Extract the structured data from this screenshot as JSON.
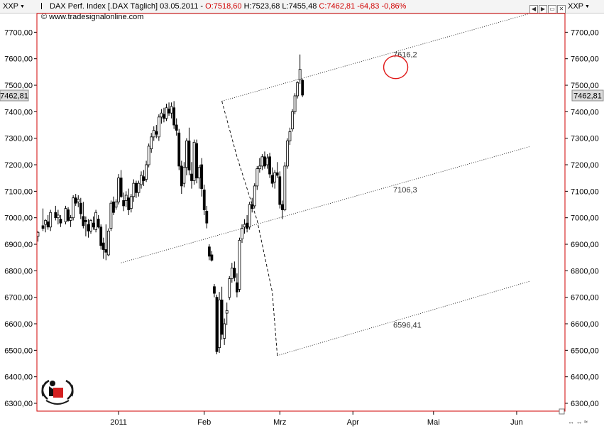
{
  "header": {
    "left_symbol": "XXP",
    "right_symbol": "XXP",
    "instrument": "DAX Perf. Index [.DAX  Täglich]",
    "date": "03.05.2011",
    "open": "O:7518,60",
    "high": "H:7523,68",
    "low": "L:7455,48",
    "close": "C:7462,81",
    "change": "-64,83",
    "change_pct": "-0,86%",
    "website": "© www.tradesignalonline.com",
    "window_buttons": [
      "◀",
      "▶",
      "▭",
      "✕"
    ]
  },
  "colors": {
    "change_red": "#d00000",
    "price_tag_bg": "#dcdcdc",
    "frame": "#d00000",
    "highlight_circle": "#e01818"
  },
  "chart_data": {
    "type": "candlestick",
    "title": "DAX Perf. Index [.DAX  Täglich]",
    "xlabel": "",
    "ylabel": "",
    "ylim": [
      6270,
      7790
    ],
    "yticks": [
      6300,
      6400,
      6500,
      6600,
      6700,
      6800,
      6900,
      7000,
      7100,
      7200,
      7300,
      7400,
      7500,
      7600,
      7700
    ],
    "ytick_labels": [
      "6300,00",
      "6400,00",
      "6500,00",
      "6600,00",
      "6700,00",
      "6800,00",
      "6900,00",
      "7000,00",
      "7100,00",
      "7200,00",
      "7300,00",
      "7400,00",
      "7500,00",
      "7600,00",
      "7700,00"
    ],
    "xlim": [
      0,
      194
    ],
    "xticks": [
      {
        "label": "2011",
        "x": 31
      },
      {
        "label": "Feb",
        "x": 65
      },
      {
        "label": "Mrz",
        "x": 95
      },
      {
        "label": "Apr",
        "x": 124
      },
      {
        "label": "Mai",
        "x": 156
      },
      {
        "label": "Jun",
        "x": 189
      }
    ],
    "last_price": "7462,81",
    "annotations": [
      {
        "text": "7616,2",
        "x": 140,
        "y": 7616.2
      },
      {
        "text": "7106,3",
        "x": 140,
        "y": 7106.3
      },
      {
        "text": "6596,41",
        "x": 140,
        "y": 6596.41
      }
    ],
    "channel_lines": [
      {
        "name": "upper",
        "from": [
          72,
          7440
        ],
        "to": [
          194,
          7770
        ]
      },
      {
        "name": "middle",
        "from": [
          32,
          6830
        ],
        "to": [
          194,
          7268
        ]
      },
      {
        "name": "lower",
        "from": [
          94,
          6480
        ],
        "to": [
          194,
          6760
        ]
      }
    ],
    "dashed_line": [
      [
        72,
        7440
      ],
      [
        78,
        7230
      ],
      [
        86,
        6990
      ],
      [
        92,
        6720
      ],
      [
        94,
        6480
      ]
    ],
    "highlight_circle": {
      "x": 141,
      "y": 7568
    },
    "candles": [
      {
        "x": -1,
        "o": 6930,
        "h": 6950,
        "l": 6910,
        "c": 6945
      },
      {
        "x": 1,
        "o": 6970,
        "h": 7035,
        "l": 6950,
        "c": 6960
      },
      {
        "x": 2,
        "o": 6975,
        "h": 6995,
        "l": 6945,
        "c": 6990
      },
      {
        "x": 3,
        "o": 6985,
        "h": 7010,
        "l": 6955,
        "c": 6965
      },
      {
        "x": 4,
        "o": 6965,
        "h": 7030,
        "l": 6950,
        "c": 7020
      },
      {
        "x": 6,
        "o": 7020,
        "h": 7045,
        "l": 6990,
        "c": 7000
      },
      {
        "x": 7,
        "o": 7000,
        "h": 7030,
        "l": 6975,
        "c": 7010
      },
      {
        "x": 8,
        "o": 6995,
        "h": 7010,
        "l": 6965,
        "c": 6980
      },
      {
        "x": 10,
        "o": 6985,
        "h": 7045,
        "l": 6975,
        "c": 7035
      },
      {
        "x": 11,
        "o": 7030,
        "h": 7040,
        "l": 6985,
        "c": 6990
      },
      {
        "x": 12,
        "o": 6990,
        "h": 7010,
        "l": 6965,
        "c": 7000
      },
      {
        "x": 13,
        "o": 7000,
        "h": 7085,
        "l": 6990,
        "c": 7075
      },
      {
        "x": 14,
        "o": 7075,
        "h": 7090,
        "l": 7045,
        "c": 7055
      },
      {
        "x": 15,
        "o": 7060,
        "h": 7085,
        "l": 7040,
        "c": 7070
      },
      {
        "x": 16,
        "o": 7055,
        "h": 7075,
        "l": 6995,
        "c": 7015
      },
      {
        "x": 17,
        "o": 7005,
        "h": 7060,
        "l": 6960,
        "c": 6970
      },
      {
        "x": 18,
        "o": 6990,
        "h": 7005,
        "l": 6930,
        "c": 6985
      },
      {
        "x": 19,
        "o": 6975,
        "h": 6995,
        "l": 6925,
        "c": 6950
      },
      {
        "x": 20,
        "o": 6950,
        "h": 6995,
        "l": 6940,
        "c": 6990
      },
      {
        "x": 21,
        "o": 6980,
        "h": 7005,
        "l": 6955,
        "c": 6965
      },
      {
        "x": 22,
        "o": 6955,
        "h": 7030,
        "l": 6945,
        "c": 7020
      },
      {
        "x": 23,
        "o": 6995,
        "h": 7010,
        "l": 6960,
        "c": 6965
      },
      {
        "x": 24,
        "o": 6965,
        "h": 6975,
        "l": 6880,
        "c": 6895
      },
      {
        "x": 25,
        "o": 6905,
        "h": 6925,
        "l": 6845,
        "c": 6880
      },
      {
        "x": 26,
        "o": 6880,
        "h": 6975,
        "l": 6840,
        "c": 6870
      },
      {
        "x": 27,
        "o": 6860,
        "h": 6960,
        "l": 6855,
        "c": 6950
      },
      {
        "x": 28,
        "o": 6960,
        "h": 7065,
        "l": 6950,
        "c": 7055
      },
      {
        "x": 29,
        "o": 7060,
        "h": 7080,
        "l": 7010,
        "c": 7020
      },
      {
        "x": 30,
        "o": 7040,
        "h": 7070,
        "l": 7030,
        "c": 7060
      },
      {
        "x": 31,
        "o": 7060,
        "h": 7165,
        "l": 7050,
        "c": 7150
      },
      {
        "x": 32,
        "o": 7150,
        "h": 7180,
        "l": 7075,
        "c": 7080
      },
      {
        "x": 33,
        "o": 7065,
        "h": 7095,
        "l": 7025,
        "c": 7045
      },
      {
        "x": 34,
        "o": 7065,
        "h": 7100,
        "l": 7040,
        "c": 7085
      },
      {
        "x": 35,
        "o": 7075,
        "h": 7110,
        "l": 7010,
        "c": 7030
      },
      {
        "x": 36,
        "o": 7035,
        "h": 7090,
        "l": 7020,
        "c": 7080
      },
      {
        "x": 37,
        "o": 7080,
        "h": 7145,
        "l": 7060,
        "c": 7130
      },
      {
        "x": 38,
        "o": 7130,
        "h": 7140,
        "l": 7075,
        "c": 7095
      },
      {
        "x": 39,
        "o": 7095,
        "h": 7140,
        "l": 7080,
        "c": 7130
      },
      {
        "x": 40,
        "o": 7125,
        "h": 7175,
        "l": 7110,
        "c": 7160
      },
      {
        "x": 41,
        "o": 7155,
        "h": 7180,
        "l": 7120,
        "c": 7140
      },
      {
        "x": 42,
        "o": 7145,
        "h": 7215,
        "l": 7135,
        "c": 7200
      },
      {
        "x": 43,
        "o": 7200,
        "h": 7280,
        "l": 7190,
        "c": 7270
      },
      {
        "x": 44,
        "o": 7260,
        "h": 7320,
        "l": 7245,
        "c": 7305
      },
      {
        "x": 45,
        "o": 7305,
        "h": 7345,
        "l": 7290,
        "c": 7330
      },
      {
        "x": 46,
        "o": 7325,
        "h": 7350,
        "l": 7300,
        "c": 7315
      },
      {
        "x": 47,
        "o": 7305,
        "h": 7390,
        "l": 7290,
        "c": 7380
      },
      {
        "x": 48,
        "o": 7380,
        "h": 7410,
        "l": 7355,
        "c": 7395
      },
      {
        "x": 49,
        "o": 7390,
        "h": 7415,
        "l": 7360,
        "c": 7375
      },
      {
        "x": 50,
        "o": 7375,
        "h": 7430,
        "l": 7365,
        "c": 7415
      },
      {
        "x": 51,
        "o": 7410,
        "h": 7435,
        "l": 7385,
        "c": 7395
      },
      {
        "x": 52,
        "o": 7395,
        "h": 7435,
        "l": 7375,
        "c": 7420
      },
      {
        "x": 53,
        "o": 7415,
        "h": 7440,
        "l": 7335,
        "c": 7350
      },
      {
        "x": 54,
        "o": 7350,
        "h": 7375,
        "l": 7310,
        "c": 7330
      },
      {
        "x": 55,
        "o": 7320,
        "h": 7335,
        "l": 7180,
        "c": 7195
      },
      {
        "x": 56,
        "o": 7195,
        "h": 7215,
        "l": 7090,
        "c": 7120
      },
      {
        "x": 57,
        "o": 7130,
        "h": 7210,
        "l": 7115,
        "c": 7190
      },
      {
        "x": 58,
        "o": 7190,
        "h": 7300,
        "l": 7160,
        "c": 7290
      },
      {
        "x": 59,
        "o": 7290,
        "h": 7340,
        "l": 7160,
        "c": 7180
      },
      {
        "x": 60,
        "o": 7165,
        "h": 7210,
        "l": 7110,
        "c": 7140
      },
      {
        "x": 61,
        "o": 7140,
        "h": 7295,
        "l": 7125,
        "c": 7285
      },
      {
        "x": 62,
        "o": 7280,
        "h": 7295,
        "l": 7130,
        "c": 7150
      },
      {
        "x": 63,
        "o": 7150,
        "h": 7200,
        "l": 7110,
        "c": 7190
      },
      {
        "x": 64,
        "o": 7200,
        "h": 7225,
        "l": 7080,
        "c": 7110
      },
      {
        "x": 65,
        "o": 7105,
        "h": 7125,
        "l": 7010,
        "c": 7030
      },
      {
        "x": 66,
        "o": 7025,
        "h": 7045,
        "l": 6960,
        "c": 6980
      },
      {
        "x": 67,
        "o": 6890,
        "h": 6900,
        "l": 6840,
        "c": 6855
      },
      {
        "x": 68,
        "o": 6860,
        "h": 6875,
        "l": 6835,
        "c": 6840
      },
      {
        "x": 69,
        "o": 6740,
        "h": 6750,
        "l": 6700,
        "c": 6715
      },
      {
        "x": 70,
        "o": 6700,
        "h": 6710,
        "l": 6485,
        "c": 6495
      },
      {
        "x": 71,
        "o": 6510,
        "h": 6720,
        "l": 6490,
        "c": 6690
      },
      {
        "x": 72,
        "o": 6690,
        "h": 6740,
        "l": 6540,
        "c": 6560
      },
      {
        "x": 73,
        "o": 6545,
        "h": 6620,
        "l": 6520,
        "c": 6600
      },
      {
        "x": 74,
        "o": 6640,
        "h": 6680,
        "l": 6595,
        "c": 6650
      },
      {
        "x": 75,
        "o": 6700,
        "h": 6780,
        "l": 6690,
        "c": 6770
      },
      {
        "x": 76,
        "o": 6770,
        "h": 6830,
        "l": 6755,
        "c": 6810
      },
      {
        "x": 77,
        "o": 6810,
        "h": 6835,
        "l": 6760,
        "c": 6775
      },
      {
        "x": 78,
        "o": 6755,
        "h": 6790,
        "l": 6700,
        "c": 6720
      },
      {
        "x": 79,
        "o": 6730,
        "h": 6925,
        "l": 6720,
        "c": 6915
      },
      {
        "x": 80,
        "o": 6920,
        "h": 6975,
        "l": 6905,
        "c": 6960
      },
      {
        "x": 81,
        "o": 6965,
        "h": 6995,
        "l": 6940,
        "c": 6975
      },
      {
        "x": 82,
        "o": 6980,
        "h": 7010,
        "l": 6945,
        "c": 6960
      },
      {
        "x": 83,
        "o": 6965,
        "h": 7060,
        "l": 6955,
        "c": 7050
      },
      {
        "x": 84,
        "o": 7050,
        "h": 7075,
        "l": 7020,
        "c": 7035
      },
      {
        "x": 85,
        "o": 7045,
        "h": 7130,
        "l": 7035,
        "c": 7120
      },
      {
        "x": 86,
        "o": 7120,
        "h": 7195,
        "l": 7105,
        "c": 7185
      },
      {
        "x": 87,
        "o": 7185,
        "h": 7225,
        "l": 7170,
        "c": 7195
      },
      {
        "x": 88,
        "o": 7195,
        "h": 7240,
        "l": 7180,
        "c": 7230
      },
      {
        "x": 89,
        "o": 7230,
        "h": 7250,
        "l": 7185,
        "c": 7195
      },
      {
        "x": 90,
        "o": 7200,
        "h": 7240,
        "l": 7185,
        "c": 7225
      },
      {
        "x": 91,
        "o": 7230,
        "h": 7245,
        "l": 7150,
        "c": 7165
      },
      {
        "x": 92,
        "o": 7160,
        "h": 7190,
        "l": 7115,
        "c": 7130
      },
      {
        "x": 93,
        "o": 7135,
        "h": 7180,
        "l": 7110,
        "c": 7170
      },
      {
        "x": 94,
        "o": 7170,
        "h": 7210,
        "l": 7150,
        "c": 7160
      },
      {
        "x": 95,
        "o": 7155,
        "h": 7175,
        "l": 7035,
        "c": 7050
      },
      {
        "x": 96,
        "o": 7050,
        "h": 7065,
        "l": 6995,
        "c": 7030
      },
      {
        "x": 97,
        "o": 7030,
        "h": 7210,
        "l": 7025,
        "c": 7195
      },
      {
        "x": 98,
        "o": 7195,
        "h": 7300,
        "l": 7185,
        "c": 7290
      },
      {
        "x": 99,
        "o": 7290,
        "h": 7340,
        "l": 7275,
        "c": 7325
      },
      {
        "x": 100,
        "o": 7335,
        "h": 7410,
        "l": 7325,
        "c": 7400
      },
      {
        "x": 101,
        "o": 7400,
        "h": 7470,
        "l": 7390,
        "c": 7460
      },
      {
        "x": 102,
        "o": 7460,
        "h": 7515,
        "l": 7450,
        "c": 7510
      },
      {
        "x": 103,
        "o": 7520,
        "h": 7616,
        "l": 7505,
        "c": 7560
      },
      {
        "x": 104,
        "o": 7518.6,
        "h": 7523.68,
        "l": 7455.48,
        "c": 7462.81
      }
    ]
  }
}
